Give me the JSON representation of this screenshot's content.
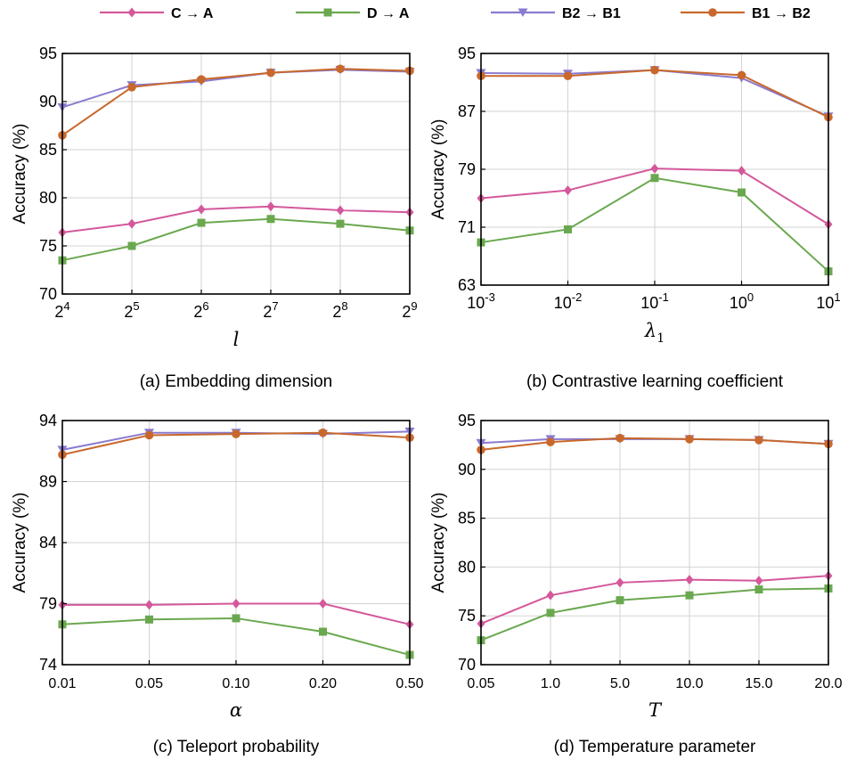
{
  "legend": [
    {
      "name": "C → A",
      "color": "#d4589b",
      "marker": "diamond"
    },
    {
      "name": "D → A",
      "color": "#6aa84f",
      "marker": "square"
    },
    {
      "name": "B2 → B1",
      "color": "#8a7ad0",
      "marker": "triangle-down"
    },
    {
      "name": "B1 → B2",
      "color": "#c8682c",
      "marker": "circle"
    }
  ],
  "chart_data": [
    {
      "type": "line",
      "caption": "(a) Embedding dimension",
      "xlabel": "l",
      "xlabel_sub": "",
      "ylabel": "Accuracy (%)",
      "tick_base": "2",
      "categories": [
        "4",
        "5",
        "6",
        "7",
        "8",
        "9"
      ],
      "ylim": [
        70,
        95
      ],
      "yticks": [
        70,
        75,
        80,
        85,
        90,
        95
      ],
      "grid": true,
      "series": [
        {
          "name": "C → A",
          "values": [
            76.4,
            77.3,
            78.8,
            79.1,
            78.7,
            78.5
          ]
        },
        {
          "name": "D → A",
          "values": [
            73.5,
            75.0,
            77.4,
            77.8,
            77.3,
            76.6
          ]
        },
        {
          "name": "B2 → B1",
          "values": [
            89.4,
            91.7,
            92.1,
            93.0,
            93.3,
            93.1
          ]
        },
        {
          "name": "B1 → B2",
          "values": [
            86.5,
            91.5,
            92.3,
            93.0,
            93.4,
            93.2
          ]
        }
      ]
    },
    {
      "type": "line",
      "caption": "(b) Contrastive learning coefficient",
      "xlabel": "λ",
      "xlabel_sub": "1",
      "ylabel": "Accuracy (%)",
      "tick_base": "10",
      "categories": [
        "-3",
        "-2",
        "-1",
        "0",
        "1"
      ],
      "ylim": [
        63,
        95
      ],
      "yticks": [
        63,
        71,
        79,
        87,
        95
      ],
      "grid": true,
      "series": [
        {
          "name": "C → A",
          "values": [
            75.0,
            76.1,
            79.1,
            78.8,
            71.4
          ]
        },
        {
          "name": "D → A",
          "values": [
            68.9,
            70.7,
            77.8,
            75.8,
            64.9
          ]
        },
        {
          "name": "B2 → B1",
          "values": [
            92.3,
            92.2,
            92.7,
            91.6,
            86.3
          ]
        },
        {
          "name": "B1 → B2",
          "values": [
            91.9,
            91.9,
            92.7,
            92.0,
            86.2
          ]
        }
      ]
    },
    {
      "type": "line",
      "caption": "(c) Teleport probability",
      "xlabel": "α",
      "xlabel_sub": "",
      "ylabel": "Accuracy (%)",
      "tick_base": "",
      "categories": [
        "0.01",
        "0.05",
        "0.10",
        "0.20",
        "0.50"
      ],
      "ylim": [
        74,
        94
      ],
      "yticks": [
        74,
        79,
        84,
        89,
        94
      ],
      "grid": true,
      "series": [
        {
          "name": "C → A",
          "values": [
            78.9,
            78.9,
            79.0,
            79.0,
            77.3
          ]
        },
        {
          "name": "D → A",
          "values": [
            77.3,
            77.7,
            77.8,
            76.7,
            74.8
          ]
        },
        {
          "name": "B2 → B1",
          "values": [
            91.6,
            93.0,
            93.0,
            92.9,
            93.1
          ]
        },
        {
          "name": "B1 → B2",
          "values": [
            91.2,
            92.8,
            92.9,
            93.0,
            92.6
          ]
        }
      ]
    },
    {
      "type": "line",
      "caption": "(d) Temperature parameter",
      "xlabel": "T",
      "xlabel_sub": "",
      "ylabel": "Accuracy (%)",
      "tick_base": "",
      "categories": [
        "0.05",
        "1.0",
        "5.0",
        "10.0",
        "15.0",
        "20.0"
      ],
      "ylim": [
        70,
        95
      ],
      "yticks": [
        70,
        75,
        80,
        85,
        90,
        95
      ],
      "grid": true,
      "series": [
        {
          "name": "C → A",
          "values": [
            74.2,
            77.1,
            78.4,
            78.7,
            78.6,
            79.1
          ]
        },
        {
          "name": "D → A",
          "values": [
            72.5,
            75.3,
            76.6,
            77.1,
            77.7,
            77.8
          ]
        },
        {
          "name": "B2 → B1",
          "values": [
            92.7,
            93.1,
            93.1,
            93.1,
            93.0,
            92.6
          ]
        },
        {
          "name": "B1 → B2",
          "values": [
            92.0,
            92.8,
            93.2,
            93.1,
            93.0,
            92.6
          ]
        }
      ]
    }
  ]
}
